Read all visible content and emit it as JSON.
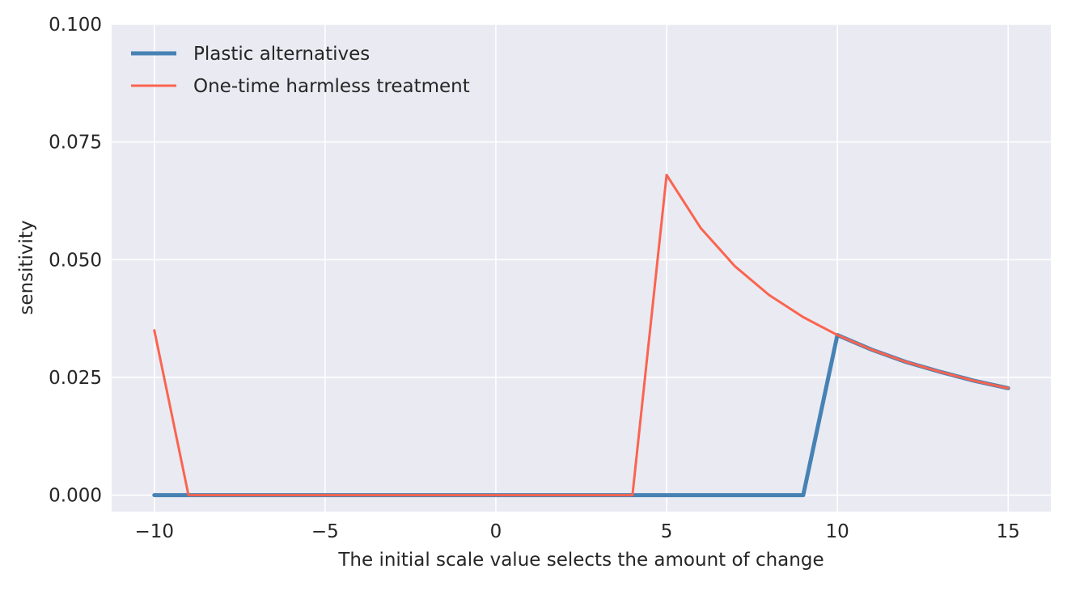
{
  "chart_data": {
    "type": "line",
    "title": "",
    "xlabel": "The initial scale value selects the amount of change",
    "ylabel": "sensitivity",
    "xlim": [
      -11.25,
      16.25
    ],
    "ylim": [
      -0.0035,
      0.1
    ],
    "grid": true,
    "legend_position": "upper-left",
    "background": "#eaeaf2",
    "grid_color": "#ffffff",
    "x_ticks": [
      {
        "value": -10,
        "label": "−10"
      },
      {
        "value": -5,
        "label": "−5"
      },
      {
        "value": 0,
        "label": "0"
      },
      {
        "value": 5,
        "label": "5"
      },
      {
        "value": 10,
        "label": "10"
      },
      {
        "value": 15,
        "label": "15"
      }
    ],
    "y_ticks": [
      {
        "value": 0.0,
        "label": "0.000"
      },
      {
        "value": 0.025,
        "label": "0.025"
      },
      {
        "value": 0.05,
        "label": "0.050"
      },
      {
        "value": 0.075,
        "label": "0.075"
      },
      {
        "value": 0.1,
        "label": "0.100"
      }
    ],
    "x": [
      -10,
      -9,
      -8,
      -7,
      -6,
      -5,
      -4,
      -3,
      -2,
      -1,
      0,
      1,
      2,
      3,
      4,
      5,
      6,
      7,
      8,
      9,
      10,
      11,
      12,
      13,
      14,
      15
    ],
    "series": [
      {
        "name": "Plastic alternatives",
        "color": "#4682b4",
        "line_width": 5,
        "values": [
          0,
          0,
          0,
          0,
          0,
          0,
          0,
          0,
          0,
          0,
          0,
          0,
          0,
          0,
          0,
          0,
          0,
          0,
          0,
          0,
          0.034,
          0.0309,
          0.0283,
          0.0262,
          0.0243,
          0.0227
        ]
      },
      {
        "name": "One-time harmless treatment",
        "color": "#fa6450",
        "line_width": 3,
        "values": [
          0.035,
          0,
          0,
          0,
          0,
          0,
          0,
          0,
          0,
          0,
          0,
          0,
          0,
          0,
          0,
          0.068,
          0.0567,
          0.0486,
          0.0425,
          0.0378,
          0.034,
          0.0309,
          0.0283,
          0.0262,
          0.0243,
          0.0227
        ]
      }
    ]
  }
}
